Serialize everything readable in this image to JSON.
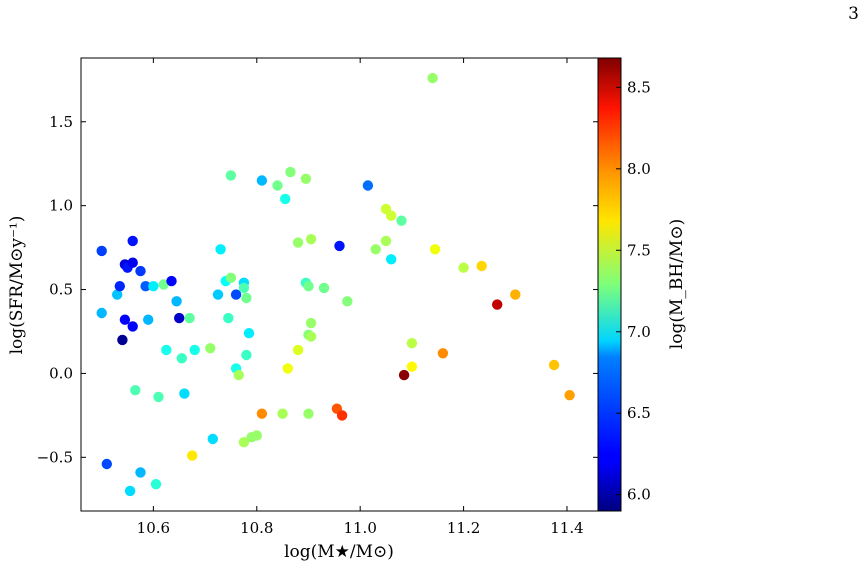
{
  "page": {
    "page_number": "3"
  },
  "chart_data": {
    "type": "scatter",
    "xlabel": "log(M★/M⊙)",
    "ylabel": "log(SFR/M⊙y⁻¹)",
    "colorbar_label": "log(M_BH/M⊙)",
    "xlim": [
      10.46,
      11.46
    ],
    "ylim": [
      -0.82,
      1.88
    ],
    "x_ticks": [
      "10.6",
      "10.8",
      "11.0",
      "11.2",
      "11.4"
    ],
    "x_tick_values": [
      10.6,
      10.8,
      11.0,
      11.2,
      11.4
    ],
    "y_ticks": [
      "−0.5",
      "0.0",
      "0.5",
      "1.0",
      "1.5"
    ],
    "y_tick_values": [
      -0.5,
      0.0,
      0.5,
      1.0,
      1.5
    ],
    "colorbar_ticks": [
      "6.0",
      "6.5",
      "7.0",
      "7.5",
      "8.0",
      "8.5"
    ],
    "colorbar_tick_values": [
      6.0,
      6.5,
      7.0,
      7.5,
      8.0,
      8.5
    ],
    "color_range": [
      5.9,
      8.68
    ],
    "colormap": "jet",
    "points": [
      {
        "x": 10.5,
        "y": 0.73,
        "c": 6.42
      },
      {
        "x": 10.5,
        "y": 0.36,
        "c": 6.75
      },
      {
        "x": 10.51,
        "y": -0.54,
        "c": 6.45
      },
      {
        "x": 10.53,
        "y": 0.47,
        "c": 6.78
      },
      {
        "x": 10.535,
        "y": 0.52,
        "c": 6.35
      },
      {
        "x": 10.54,
        "y": 0.2,
        "c": 5.95
      },
      {
        "x": 10.545,
        "y": 0.65,
        "c": 6.15
      },
      {
        "x": 10.545,
        "y": 0.32,
        "c": 6.25
      },
      {
        "x": 10.55,
        "y": 0.63,
        "c": 6.3
      },
      {
        "x": 10.555,
        "y": -0.7,
        "c": 6.85
      },
      {
        "x": 10.56,
        "y": 0.66,
        "c": 6.2
      },
      {
        "x": 10.56,
        "y": 0.79,
        "c": 6.3
      },
      {
        "x": 10.56,
        "y": 0.28,
        "c": 6.25
      },
      {
        "x": 10.565,
        "y": -0.1,
        "c": 7.15
      },
      {
        "x": 10.575,
        "y": 0.61,
        "c": 6.4
      },
      {
        "x": 10.575,
        "y": -0.59,
        "c": 6.75
      },
      {
        "x": 10.585,
        "y": 0.52,
        "c": 6.5
      },
      {
        "x": 10.59,
        "y": 0.32,
        "c": 6.75
      },
      {
        "x": 10.6,
        "y": 0.52,
        "c": 6.9
      },
      {
        "x": 10.605,
        "y": -0.66,
        "c": 7.05
      },
      {
        "x": 10.61,
        "y": -0.14,
        "c": 7.15
      },
      {
        "x": 10.62,
        "y": 0.53,
        "c": 7.25
      },
      {
        "x": 10.625,
        "y": 0.14,
        "c": 7.0
      },
      {
        "x": 10.635,
        "y": 0.55,
        "c": 6.25
      },
      {
        "x": 10.645,
        "y": 0.43,
        "c": 6.75
      },
      {
        "x": 10.65,
        "y": 0.33,
        "c": 6.1
      },
      {
        "x": 10.655,
        "y": 0.09,
        "c": 7.1
      },
      {
        "x": 10.66,
        "y": -0.12,
        "c": 6.85
      },
      {
        "x": 10.67,
        "y": 0.33,
        "c": 7.2
      },
      {
        "x": 10.675,
        "y": -0.49,
        "c": 7.7
      },
      {
        "x": 10.68,
        "y": 0.14,
        "c": 7.0
      },
      {
        "x": 10.71,
        "y": 0.15,
        "c": 7.35
      },
      {
        "x": 10.715,
        "y": -0.39,
        "c": 6.85
      },
      {
        "x": 10.725,
        "y": 0.47,
        "c": 6.8
      },
      {
        "x": 10.73,
        "y": 0.74,
        "c": 6.9
      },
      {
        "x": 10.74,
        "y": 0.55,
        "c": 6.95
      },
      {
        "x": 10.745,
        "y": 0.33,
        "c": 7.1
      },
      {
        "x": 10.75,
        "y": 1.18,
        "c": 7.2
      },
      {
        "x": 10.75,
        "y": 0.57,
        "c": 7.3
      },
      {
        "x": 10.76,
        "y": 0.47,
        "c": 6.45
      },
      {
        "x": 10.76,
        "y": 0.03,
        "c": 7.0
      },
      {
        "x": 10.765,
        "y": -0.01,
        "c": 7.4
      },
      {
        "x": 10.775,
        "y": 0.54,
        "c": 6.85
      },
      {
        "x": 10.775,
        "y": 0.51,
        "c": 7.15
      },
      {
        "x": 10.775,
        "y": -0.41,
        "c": 7.4
      },
      {
        "x": 10.78,
        "y": 0.45,
        "c": 7.25
      },
      {
        "x": 10.78,
        "y": 0.11,
        "c": 7.1
      },
      {
        "x": 10.785,
        "y": 0.24,
        "c": 6.9
      },
      {
        "x": 10.79,
        "y": -0.38,
        "c": 7.35
      },
      {
        "x": 10.8,
        "y": -0.37,
        "c": 7.35
      },
      {
        "x": 10.81,
        "y": 1.15,
        "c": 6.75
      },
      {
        "x": 10.81,
        "y": -0.24,
        "c": 7.95
      },
      {
        "x": 10.84,
        "y": 1.12,
        "c": 7.25
      },
      {
        "x": 10.85,
        "y": -0.24,
        "c": 7.4
      },
      {
        "x": 10.855,
        "y": 1.04,
        "c": 7.0
      },
      {
        "x": 10.86,
        "y": 0.03,
        "c": 7.6
      },
      {
        "x": 10.865,
        "y": 1.2,
        "c": 7.3
      },
      {
        "x": 10.88,
        "y": 0.14,
        "c": 7.55
      },
      {
        "x": 10.88,
        "y": 0.78,
        "c": 7.35
      },
      {
        "x": 10.895,
        "y": 1.16,
        "c": 7.35
      },
      {
        "x": 10.895,
        "y": 0.54,
        "c": 7.1
      },
      {
        "x": 10.9,
        "y": 0.52,
        "c": 7.25
      },
      {
        "x": 10.9,
        "y": 0.23,
        "c": 7.3
      },
      {
        "x": 10.905,
        "y": 0.8,
        "c": 7.4
      },
      {
        "x": 10.905,
        "y": 0.3,
        "c": 7.35
      },
      {
        "x": 10.905,
        "y": 0.22,
        "c": 7.4
      },
      {
        "x": 10.9,
        "y": -0.24,
        "c": 7.35
      },
      {
        "x": 10.93,
        "y": 0.51,
        "c": 7.25
      },
      {
        "x": 10.955,
        "y": -0.21,
        "c": 8.1
      },
      {
        "x": 10.96,
        "y": 0.76,
        "c": 6.3
      },
      {
        "x": 10.965,
        "y": -0.25,
        "c": 8.2
      },
      {
        "x": 10.975,
        "y": 0.43,
        "c": 7.3
      },
      {
        "x": 11.015,
        "y": 1.12,
        "c": 6.55
      },
      {
        "x": 11.03,
        "y": 0.74,
        "c": 7.35
      },
      {
        "x": 11.05,
        "y": 0.98,
        "c": 7.5
      },
      {
        "x": 11.05,
        "y": 0.79,
        "c": 7.4
      },
      {
        "x": 11.06,
        "y": 0.68,
        "c": 6.9
      },
      {
        "x": 11.06,
        "y": 0.94,
        "c": 7.5
      },
      {
        "x": 11.08,
        "y": 0.91,
        "c": 7.2
      },
      {
        "x": 11.085,
        "y": -0.01,
        "c": 8.65
      },
      {
        "x": 11.1,
        "y": 0.18,
        "c": 7.45
      },
      {
        "x": 11.1,
        "y": 0.04,
        "c": 7.65
      },
      {
        "x": 11.14,
        "y": 1.76,
        "c": 7.35
      },
      {
        "x": 11.145,
        "y": 0.74,
        "c": 7.6
      },
      {
        "x": 11.16,
        "y": 0.12,
        "c": 7.95
      },
      {
        "x": 11.2,
        "y": 0.63,
        "c": 7.45
      },
      {
        "x": 11.235,
        "y": 0.64,
        "c": 7.75
      },
      {
        "x": 11.265,
        "y": 0.41,
        "c": 8.5
      },
      {
        "x": 11.3,
        "y": 0.47,
        "c": 7.85
      },
      {
        "x": 11.375,
        "y": 0.05,
        "c": 7.8
      },
      {
        "x": 11.405,
        "y": -0.13,
        "c": 7.9
      }
    ]
  }
}
